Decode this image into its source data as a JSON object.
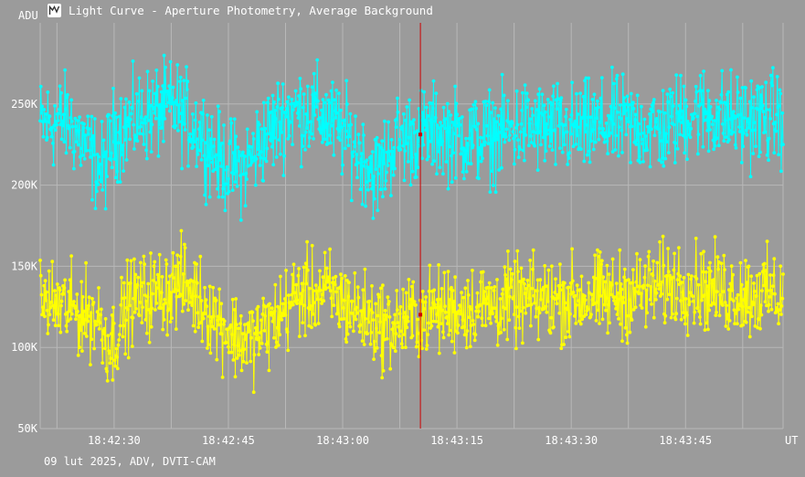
{
  "window": {
    "title": "Light Curve - Aperture Photometry, Average Background",
    "icon": "light-curve-app-icon"
  },
  "footer": {
    "info": "09 lut 2025, ADV, DVTI-CAM"
  },
  "colors": {
    "background": "#9b9b9b",
    "grid": "#b8b8b8",
    "axis_text": "#ffffff",
    "series_1": "#00ffff",
    "series_2": "#ffff00",
    "cursor": "#cc0000"
  },
  "chart_data": {
    "type": "line",
    "ylabel": "ADU",
    "xlabel": "UT",
    "ylim": [
      50000,
      300000
    ],
    "xlim": [
      "18:42:20.3",
      "18:43:57.8"
    ],
    "y_ticks": [
      {
        "value": 250000,
        "label": "250K"
      },
      {
        "value": 200000,
        "label": "200K"
      },
      {
        "value": 150000,
        "label": "150K"
      },
      {
        "value": 100000,
        "label": "100K"
      },
      {
        "value": 50000,
        "label": "50K"
      }
    ],
    "x_ticks": [
      "18:42:30",
      "18:42:45",
      "18:43:00",
      "18:43:15",
      "18:43:30",
      "18:43:45"
    ],
    "grid": true,
    "marker": "dot",
    "cursor": {
      "time": "18:43:10.2"
    },
    "series": [
      {
        "color": "#00ffff",
        "trend": [
          {
            "t": "18:42:20.3",
            "y": 237000
          },
          {
            "t": "18:42:24.0",
            "y": 240000
          },
          {
            "t": "18:42:26.5",
            "y": 222000
          },
          {
            "t": "18:42:28.5",
            "y": 208000
          },
          {
            "t": "18:42:30.0",
            "y": 232000
          },
          {
            "t": "18:42:34.0",
            "y": 243000
          },
          {
            "t": "18:42:38.0",
            "y": 248000
          },
          {
            "t": "18:42:41.5",
            "y": 232000
          },
          {
            "t": "18:42:44.0",
            "y": 214000
          },
          {
            "t": "18:42:47.0",
            "y": 210000
          },
          {
            "t": "18:42:49.5",
            "y": 228000
          },
          {
            "t": "18:42:53.0",
            "y": 246000
          },
          {
            "t": "18:42:57.0",
            "y": 244000
          },
          {
            "t": "18:43:01.0",
            "y": 228000
          },
          {
            "t": "18:43:04.5",
            "y": 206000
          },
          {
            "t": "18:43:07.0",
            "y": 228000
          },
          {
            "t": "18:43:12.0",
            "y": 233000
          },
          {
            "t": "18:43:18.0",
            "y": 228000
          },
          {
            "t": "18:43:24.0",
            "y": 236000
          },
          {
            "t": "18:43:30.0",
            "y": 233000
          },
          {
            "t": "18:43:36.0",
            "y": 238000
          },
          {
            "t": "18:43:42.0",
            "y": 234000
          },
          {
            "t": "18:43:46.0",
            "y": 246000
          },
          {
            "t": "18:43:52.0",
            "y": 240000
          },
          {
            "t": "18:43:57.8",
            "y": 242000
          }
        ],
        "amplitude": 14000
      },
      {
        "color": "#ffff00",
        "trend": [
          {
            "t": "18:42:20.3",
            "y": 128000
          },
          {
            "t": "18:42:24.0",
            "y": 124000
          },
          {
            "t": "18:42:28.0",
            "y": 118000
          },
          {
            "t": "18:42:29.5",
            "y": 100000
          },
          {
            "t": "18:42:32.0",
            "y": 128000
          },
          {
            "t": "18:42:36.0",
            "y": 134000
          },
          {
            "t": "18:42:39.0",
            "y": 140000
          },
          {
            "t": "18:42:42.0",
            "y": 126000
          },
          {
            "t": "18:42:45.5",
            "y": 108000
          },
          {
            "t": "18:42:48.0",
            "y": 104000
          },
          {
            "t": "18:42:51.0",
            "y": 116000
          },
          {
            "t": "18:42:54.0",
            "y": 132000
          },
          {
            "t": "18:42:58.0",
            "y": 134000
          },
          {
            "t": "18:43:02.0",
            "y": 122000
          },
          {
            "t": "18:43:06.0",
            "y": 112000
          },
          {
            "t": "18:43:10.0",
            "y": 120000
          },
          {
            "t": "18:43:15.0",
            "y": 124000
          },
          {
            "t": "18:43:22.0",
            "y": 128000
          },
          {
            "t": "18:43:30.0",
            "y": 130000
          },
          {
            "t": "18:43:37.0",
            "y": 132000
          },
          {
            "t": "18:43:44.0",
            "y": 140000
          },
          {
            "t": "18:43:50.0",
            "y": 134000
          },
          {
            "t": "18:43:57.8",
            "y": 132000
          }
        ],
        "amplitude": 13000
      }
    ]
  }
}
